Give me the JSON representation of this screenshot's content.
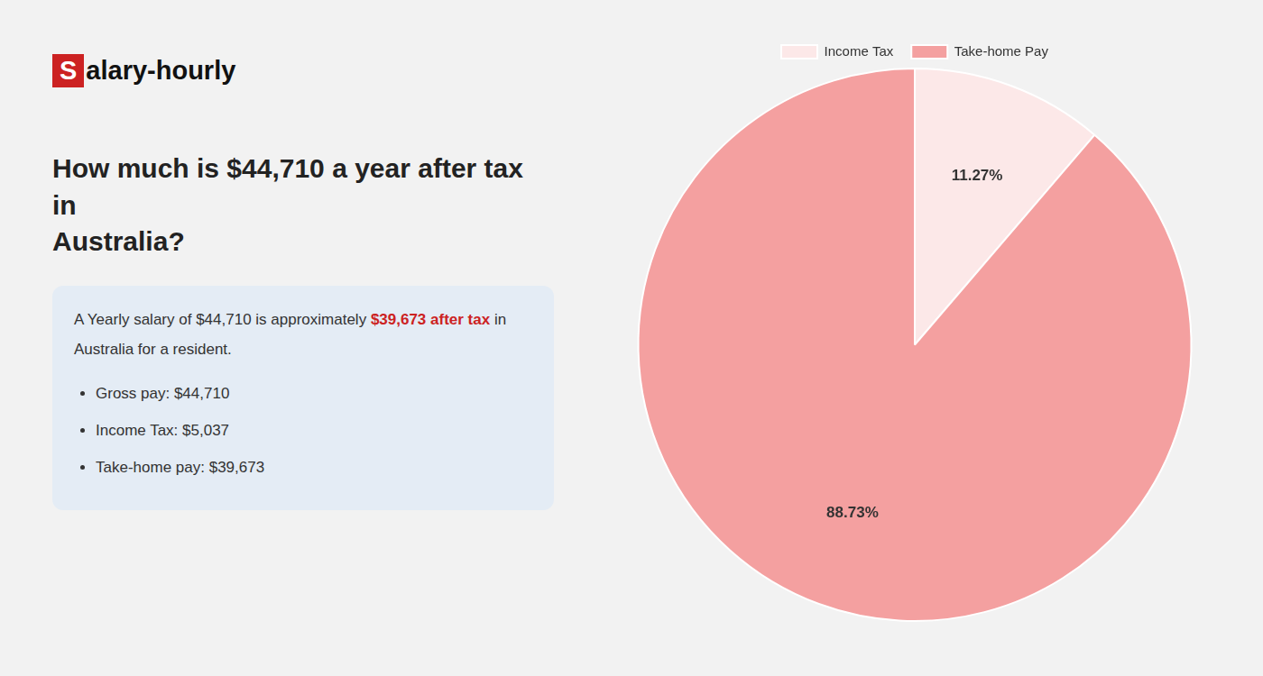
{
  "chart_data": {
    "type": "pie",
    "title": [
      "How much is $44,710 a year after tax in",
      "Australia?"
    ],
    "annotations": [
      {
        "type": "logo",
        "text": [
          {
            "text": "S",
            "color": "#cc2222"
          },
          {
            "text": "alary-hourly"
          }
        ]
      },
      {
        "text": [
          {
            "text": "A Yearly salary of $44,710 is approximately "
          },
          {
            "text": "$39,673 after tax",
            "color": "#cc2222"
          },
          {
            "text": " in"
          }
        ]
      },
      {
        "text": [
          {
            "text": "Australia for a resident."
          }
        ]
      },
      {
        "marker": "bullet",
        "text": [
          {
            "text": "Gross pay: $44,710"
          }
        ]
      },
      {
        "marker": "bullet",
        "text": [
          {
            "text": "Income Tax: $5,037"
          }
        ]
      },
      {
        "marker": "bullet",
        "text": [
          {
            "text": "Take-home pay: $39,673"
          }
        ]
      }
    ],
    "categories": [
      "Income Tax",
      "Take-home Pay"
    ],
    "values": [
      11.27,
      88.73
    ],
    "value_labels": [
      "11.27%",
      "88.73%"
    ],
    "colors": [
      "#fce8e8",
      "#f4a0a0"
    ],
    "data_labels": true,
    "legend": "top"
  }
}
